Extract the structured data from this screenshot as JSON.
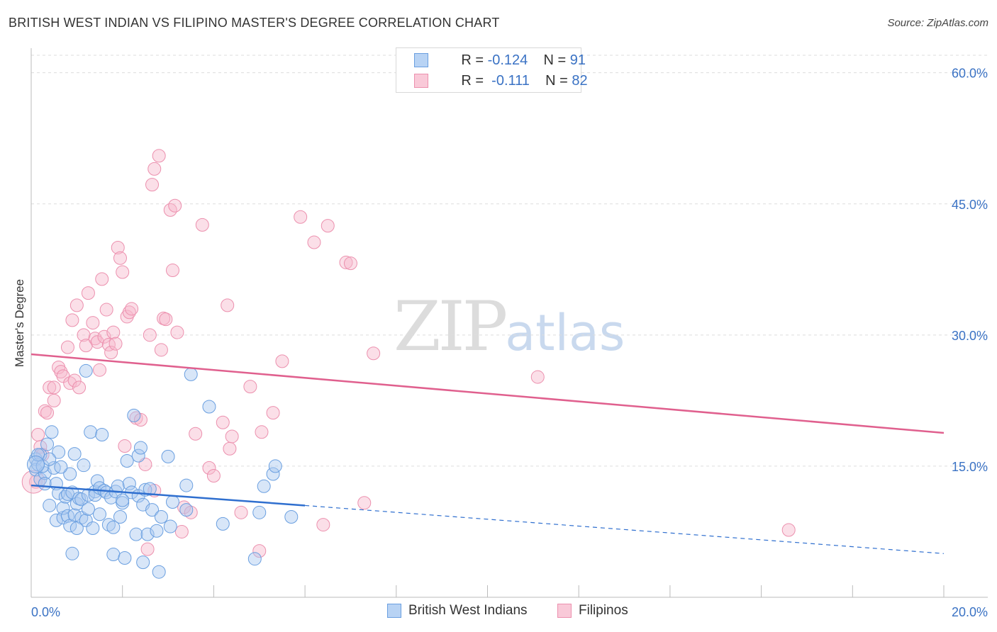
{
  "title": "BRITISH WEST INDIAN VS FILIPINO MASTER'S DEGREE CORRELATION CHART",
  "source": "Source: ZipAtlas.com",
  "watermark": {
    "zip": "ZIP",
    "atlas": "atlas"
  },
  "legend_top": {
    "blue": {
      "r_label": "R = ",
      "r_value": "-0.124",
      "n_label": "N = ",
      "n_value": "91"
    },
    "pink": {
      "r_label": "R = ",
      "r_value": "-0.111",
      "n_label": "N = ",
      "n_value": "82"
    }
  },
  "colors": {
    "blue_fill": "#a8c8f0",
    "blue_stroke": "#6a9fe0",
    "blue_line": "#2f6fcf",
    "pink_fill": "#f6b8cc",
    "pink_stroke": "#ec90ae",
    "pink_line": "#e0608e",
    "grid": "#dddddd",
    "axis_text": "#3a72c4"
  },
  "chart_data": {
    "type": "scatter",
    "title": "BRITISH WEST INDIAN VS FILIPINO MASTER'S DEGREE CORRELATION CHART",
    "xlabel": "",
    "ylabel": "Master's Degree",
    "xlim": [
      0,
      20
    ],
    "ylim": [
      0,
      62
    ],
    "x_tick_labels": [
      "0.0%",
      "20.0%"
    ],
    "y_ticks": [
      15,
      30,
      45,
      60
    ],
    "y_tick_labels": [
      "15.0%",
      "30.0%",
      "45.0%",
      "60.0%"
    ],
    "legend": [
      "British West Indians",
      "Filipinos"
    ],
    "series": [
      {
        "name": "British West Indians",
        "R": -0.124,
        "N": 91,
        "trend": {
          "x0": 0,
          "y0": 12.8,
          "x1": 6,
          "y1": 10.5,
          "dash_x1": 20,
          "dash_y1": 5.0
        },
        "points": [
          [
            0.1,
            15.8
          ],
          [
            0.1,
            14.6
          ],
          [
            0.15,
            15.2
          ],
          [
            0.2,
            13.5
          ],
          [
            0.2,
            16.3
          ],
          [
            0.3,
            14.2
          ],
          [
            0.3,
            13.0
          ],
          [
            0.35,
            17.5
          ],
          [
            0.4,
            10.5
          ],
          [
            0.45,
            18.9
          ],
          [
            0.5,
            14.8
          ],
          [
            0.55,
            13.0
          ],
          [
            0.55,
            8.8
          ],
          [
            0.6,
            11.9
          ],
          [
            0.6,
            16.6
          ],
          [
            0.7,
            9.1
          ],
          [
            0.7,
            10.2
          ],
          [
            0.75,
            11.5
          ],
          [
            0.8,
            11.8
          ],
          [
            0.8,
            9.3
          ],
          [
            0.85,
            14.1
          ],
          [
            0.85,
            8.2
          ],
          [
            0.9,
            5.0
          ],
          [
            0.9,
            12.0
          ],
          [
            0.95,
            9.4
          ],
          [
            0.95,
            16.4
          ],
          [
            1.0,
            10.7
          ],
          [
            1.05,
            11.3
          ],
          [
            1.1,
            9.1
          ],
          [
            1.1,
            11.2
          ],
          [
            1.15,
            15.1
          ],
          [
            1.2,
            8.8
          ],
          [
            1.2,
            25.9
          ],
          [
            1.25,
            11.7
          ],
          [
            1.25,
            10.1
          ],
          [
            1.3,
            18.9
          ],
          [
            1.35,
            7.9
          ],
          [
            1.4,
            12.1
          ],
          [
            1.4,
            11.7
          ],
          [
            1.45,
            13.3
          ],
          [
            1.5,
            12.5
          ],
          [
            1.55,
            18.6
          ],
          [
            1.6,
            12.2
          ],
          [
            1.65,
            12.0
          ],
          [
            1.7,
            8.3
          ],
          [
            1.75,
            11.4
          ],
          [
            1.8,
            4.9
          ],
          [
            1.8,
            8.0
          ],
          [
            1.85,
            12.1
          ],
          [
            1.9,
            12.7
          ],
          [
            1.95,
            9.2
          ],
          [
            2.0,
            10.8
          ],
          [
            2.05,
            4.5
          ],
          [
            2.1,
            15.6
          ],
          [
            2.15,
            13.0
          ],
          [
            2.2,
            12.0
          ],
          [
            2.25,
            20.8
          ],
          [
            2.3,
            7.2
          ],
          [
            2.35,
            11.6
          ],
          [
            2.35,
            16.2
          ],
          [
            2.4,
            17.1
          ],
          [
            2.45,
            4.0
          ],
          [
            2.45,
            10.6
          ],
          [
            2.5,
            12.3
          ],
          [
            2.55,
            7.2
          ],
          [
            2.6,
            12.4
          ],
          [
            2.65,
            10.0
          ],
          [
            2.75,
            7.6
          ],
          [
            2.8,
            2.9
          ],
          [
            2.85,
            9.2
          ],
          [
            3.0,
            16.1
          ],
          [
            3.05,
            8.1
          ],
          [
            3.1,
            10.9
          ],
          [
            3.4,
            12.8
          ],
          [
            3.4,
            10.0
          ],
          [
            3.5,
            25.5
          ],
          [
            3.9,
            21.8
          ],
          [
            4.2,
            8.4
          ],
          [
            5.0,
            9.7
          ],
          [
            5.1,
            12.7
          ],
          [
            5.3,
            14.1
          ],
          [
            5.35,
            15.0
          ],
          [
            5.7,
            9.2
          ],
          [
            4.9,
            4.4
          ],
          [
            0.15,
            16.3
          ],
          [
            0.25,
            15.0
          ],
          [
            0.4,
            15.8
          ],
          [
            0.65,
            14.9
          ],
          [
            1.0,
            7.9
          ],
          [
            2.0,
            11.1
          ],
          [
            1.5,
            9.5
          ]
        ]
      },
      {
        "name": "Filipinos",
        "R": -0.111,
        "N": 82,
        "trend": {
          "x0": 0,
          "y0": 27.8,
          "x1": 20,
          "y1": 18.8
        },
        "points": [
          [
            0.1,
            13.2
          ],
          [
            0.15,
            18.6
          ],
          [
            0.2,
            17.2
          ],
          [
            0.25,
            16.3
          ],
          [
            0.3,
            21.3
          ],
          [
            0.35,
            21.1
          ],
          [
            0.4,
            24.0
          ],
          [
            0.5,
            22.5
          ],
          [
            0.5,
            24.0
          ],
          [
            0.6,
            26.3
          ],
          [
            0.65,
            25.8
          ],
          [
            0.7,
            25.3
          ],
          [
            0.8,
            28.6
          ],
          [
            0.85,
            24.5
          ],
          [
            0.9,
            31.7
          ],
          [
            0.95,
            24.8
          ],
          [
            1.0,
            33.4
          ],
          [
            1.05,
            24.0
          ],
          [
            1.15,
            30.0
          ],
          [
            1.2,
            28.8
          ],
          [
            1.25,
            34.8
          ],
          [
            1.35,
            31.4
          ],
          [
            1.4,
            29.6
          ],
          [
            1.45,
            29.2
          ],
          [
            1.5,
            26.0
          ],
          [
            1.55,
            36.4
          ],
          [
            1.6,
            29.8
          ],
          [
            1.65,
            32.9
          ],
          [
            1.7,
            28.9
          ],
          [
            1.75,
            28.0
          ],
          [
            1.8,
            30.3
          ],
          [
            1.85,
            29.0
          ],
          [
            1.9,
            40.0
          ],
          [
            1.95,
            38.8
          ],
          [
            2.0,
            37.2
          ],
          [
            2.05,
            17.3
          ],
          [
            2.1,
            32.1
          ],
          [
            2.15,
            32.6
          ],
          [
            2.2,
            33.0
          ],
          [
            2.3,
            20.5
          ],
          [
            2.4,
            20.3
          ],
          [
            2.5,
            15.2
          ],
          [
            2.55,
            5.5
          ],
          [
            2.6,
            30.0
          ],
          [
            2.65,
            47.2
          ],
          [
            2.7,
            49.0
          ],
          [
            2.8,
            50.5
          ],
          [
            2.85,
            28.3
          ],
          [
            2.9,
            31.9
          ],
          [
            2.95,
            31.8
          ],
          [
            3.05,
            44.3
          ],
          [
            3.1,
            37.4
          ],
          [
            3.15,
            44.8
          ],
          [
            3.2,
            30.3
          ],
          [
            3.3,
            7.5
          ],
          [
            3.35,
            10.3
          ],
          [
            3.5,
            9.7
          ],
          [
            3.6,
            18.7
          ],
          [
            3.75,
            42.6
          ],
          [
            3.9,
            14.8
          ],
          [
            4.0,
            13.9
          ],
          [
            4.2,
            20.0
          ],
          [
            4.3,
            33.4
          ],
          [
            4.35,
            17.0
          ],
          [
            4.4,
            18.4
          ],
          [
            4.6,
            9.7
          ],
          [
            4.8,
            24.1
          ],
          [
            5.0,
            5.3
          ],
          [
            5.05,
            18.9
          ],
          [
            5.3,
            21.1
          ],
          [
            5.5,
            27.0
          ],
          [
            5.9,
            43.5
          ],
          [
            6.2,
            40.6
          ],
          [
            6.4,
            8.3
          ],
          [
            6.5,
            42.5
          ],
          [
            6.9,
            38.3
          ],
          [
            7.0,
            38.2
          ],
          [
            7.3,
            10.8
          ],
          [
            7.5,
            27.9
          ],
          [
            11.1,
            25.2
          ],
          [
            16.6,
            7.7
          ],
          [
            2.7,
            12.2
          ]
        ]
      }
    ]
  }
}
